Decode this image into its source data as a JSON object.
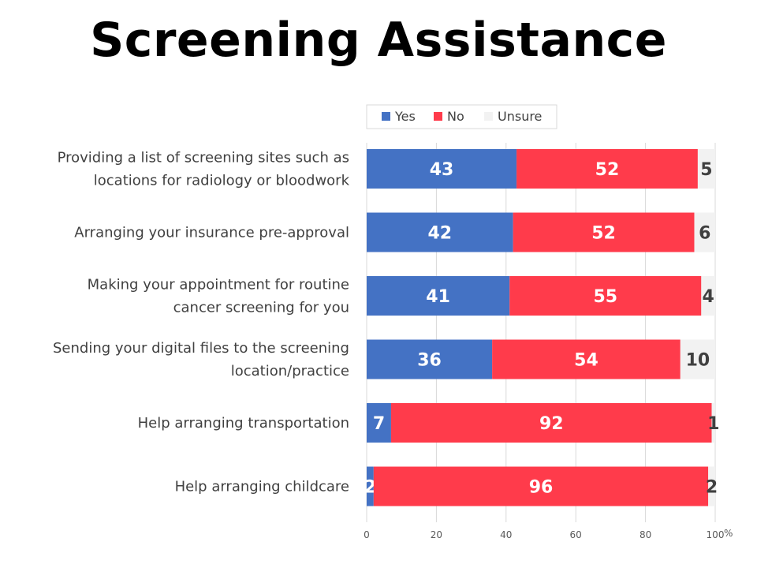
{
  "title": "Screening Assistance",
  "chart_data": {
    "type": "bar",
    "orientation": "horizontal",
    "stacked": true,
    "title": "Screening Assistance",
    "xlabel": "",
    "unit": "%",
    "xlim": [
      0,
      100
    ],
    "xticks": [
      0,
      20,
      40,
      60,
      80,
      100
    ],
    "grid": true,
    "legend": "top",
    "categories": [
      [
        "Providing a list of screening sites such as",
        "locations for radiology or bloodwork"
      ],
      [
        "Arranging your insurance pre-approval"
      ],
      [
        "Making your appointment for routine",
        "cancer screening for you"
      ],
      [
        "Sending your digital files to the screening",
        "location/practice"
      ],
      [
        "Help arranging transportation"
      ],
      [
        "Help arranging childcare"
      ]
    ],
    "series": [
      {
        "name": "Yes",
        "color": "#4472C4",
        "label_color": "#FFFFFF",
        "values": [
          43,
          42,
          41,
          36,
          7,
          2
        ]
      },
      {
        "name": "No",
        "color": "#FF3B4B",
        "label_color": "#FFFFFF",
        "values": [
          52,
          52,
          55,
          54,
          92,
          96
        ]
      },
      {
        "name": "Unsure",
        "color": "#F2F2F2",
        "label_color": "#404040",
        "values": [
          5,
          6,
          4,
          10,
          1,
          2
        ]
      }
    ]
  }
}
